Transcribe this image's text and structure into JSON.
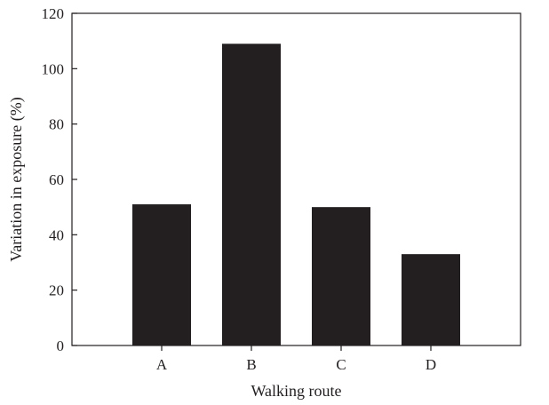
{
  "chart_data": {
    "type": "bar",
    "title": "",
    "xlabel": "Walking route",
    "ylabel": "Variation in exposure (%)",
    "categories": [
      "A",
      "B",
      "C",
      "D"
    ],
    "values": [
      51,
      109,
      50,
      33
    ],
    "ylim": [
      0,
      120
    ],
    "yticks": [
      0,
      20,
      40,
      60,
      80,
      100,
      120
    ],
    "ytick_labels": [
      "0",
      "20",
      "40",
      "60",
      "80",
      "100",
      "120"
    ],
    "grid": false,
    "legend": "none",
    "bar_color": "#231f20",
    "axis_color": "#231f20"
  }
}
